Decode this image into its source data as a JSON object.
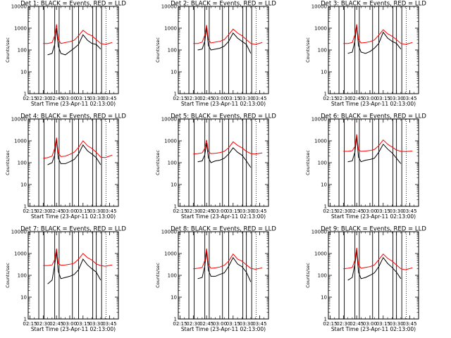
{
  "figure": {
    "panels": [
      {
        "title": "Det  1: BLACK = Events, RED = LLD"
      },
      {
        "title": "Det  2: BLACK = Events, RED = LLD"
      },
      {
        "title": "Det  3: BLACK = Events, RED = LLD"
      },
      {
        "title": "Det  4: BLACK = Events, RED = LLD"
      },
      {
        "title": "Det  5: BLACK = Events, RED = LLD"
      },
      {
        "title": "Det  6: BLACK = Events, RED = LLD"
      },
      {
        "title": "Det  7: BLACK = Events, RED = LLD"
      },
      {
        "title": "Det  8: BLACK = Events, RED = LLD"
      },
      {
        "title": "Det  9: BLACK = Events, RED = LLD"
      }
    ]
  },
  "chart_data": {
    "type": "line",
    "layout": "3x3 grid of panels",
    "ylabel": "Counts/sec",
    "xlabel": "Start Time (23-Apr-11 02:13:00)",
    "yscale": "log",
    "ylim": [
      1,
      10000
    ],
    "y_ticks": [
      "1",
      "10",
      "100",
      "1000",
      "10000"
    ],
    "xlim": [
      "02:13",
      "03:55"
    ],
    "x_ticks": [
      "02:15",
      "02:30",
      "02:45",
      "03:00",
      "03:15",
      "03:30",
      "03:45"
    ],
    "vertical_lines": [
      "02:25",
      "02:31",
      "02:43",
      "02:48",
      "03:03",
      "03:10",
      "03:26",
      "03:30",
      "03:36"
    ],
    "dotted_lines": [
      "03:41"
    ],
    "colors": {
      "events": "#000000",
      "lld": "#ff0000"
    },
    "x": [
      "02:30",
      "02:35",
      "02:40",
      "02:43",
      "02:45",
      "02:47",
      "02:50",
      "02:55",
      "03:00",
      "03:05",
      "03:10",
      "03:15",
      "03:20",
      "03:25",
      "03:30",
      "03:35",
      "03:40",
      "03:48"
    ],
    "series": [
      {
        "name": "BLACK = Events",
        "panels": [
          [
            null,
            60,
            70,
            180,
            1000,
            150,
            70,
            60,
            85,
            120,
            180,
            500,
            280,
            200,
            180,
            110,
            null,
            null
          ],
          [
            null,
            100,
            110,
            250,
            1100,
            160,
            100,
            110,
            120,
            150,
            250,
            600,
            350,
            250,
            180,
            70,
            null,
            null
          ],
          [
            null,
            70,
            80,
            250,
            1400,
            160,
            80,
            70,
            85,
            120,
            200,
            650,
            350,
            250,
            200,
            110,
            null,
            null
          ],
          [
            null,
            80,
            100,
            220,
            1200,
            160,
            90,
            90,
            110,
            140,
            250,
            650,
            350,
            250,
            170,
            80,
            null,
            null
          ],
          [
            null,
            110,
            120,
            230,
            800,
            170,
            100,
            120,
            130,
            160,
            250,
            480,
            300,
            220,
            120,
            60,
            null,
            null
          ],
          [
            null,
            110,
            120,
            300,
            1600,
            180,
            110,
            130,
            140,
            160,
            300,
            700,
            420,
            280,
            160,
            90,
            null,
            null
          ],
          [
            null,
            40,
            60,
            300,
            1200,
            150,
            70,
            80,
            90,
            110,
            180,
            550,
            300,
            200,
            140,
            60,
            null,
            null
          ],
          [
            null,
            70,
            80,
            260,
            1300,
            170,
            90,
            90,
            110,
            130,
            260,
            650,
            330,
            250,
            140,
            50,
            null,
            null
          ],
          [
            null,
            60,
            80,
            320,
            1400,
            140,
            70,
            80,
            100,
            130,
            250,
            650,
            350,
            230,
            140,
            70,
            null,
            null
          ]
        ]
      },
      {
        "name": "RED = LLD",
        "panels": [
          [
            200,
            200,
            220,
            450,
            1500,
            300,
            200,
            220,
            240,
            280,
            450,
            800,
            550,
            450,
            300,
            200,
            180,
            220
          ],
          [
            200,
            200,
            230,
            480,
            1400,
            300,
            210,
            230,
            250,
            300,
            500,
            900,
            600,
            450,
            300,
            200,
            180,
            220
          ],
          [
            200,
            200,
            220,
            500,
            1500,
            300,
            210,
            220,
            240,
            290,
            480,
            850,
            550,
            430,
            300,
            200,
            180,
            220
          ],
          [
            160,
            170,
            200,
            450,
            1400,
            280,
            190,
            200,
            240,
            300,
            500,
            1000,
            600,
            450,
            300,
            180,
            170,
            220
          ],
          [
            250,
            260,
            280,
            450,
            1100,
            320,
            260,
            270,
            290,
            330,
            480,
            900,
            620,
            480,
            330,
            260,
            250,
            280
          ],
          [
            330,
            330,
            350,
            550,
            2000,
            380,
            330,
            340,
            360,
            400,
            600,
            1100,
            700,
            520,
            380,
            330,
            320,
            340
          ],
          [
            280,
            280,
            300,
            520,
            1700,
            350,
            290,
            300,
            320,
            360,
            550,
            1000,
            650,
            500,
            330,
            280,
            260,
            300
          ],
          [
            200,
            210,
            230,
            480,
            1700,
            310,
            210,
            220,
            240,
            290,
            450,
            950,
            550,
            450,
            300,
            210,
            190,
            220
          ],
          [
            200,
            210,
            230,
            500,
            1800,
            300,
            210,
            230,
            250,
            300,
            520,
            950,
            600,
            450,
            300,
            200,
            180,
            220
          ]
        ]
      }
    ]
  }
}
